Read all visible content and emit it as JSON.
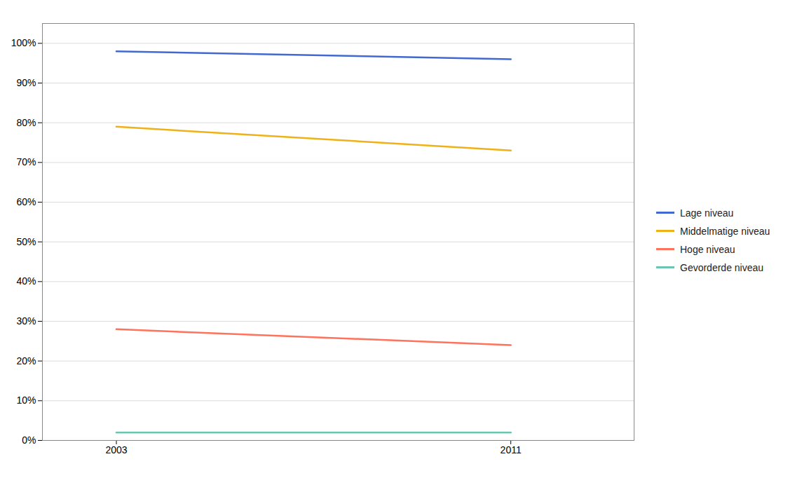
{
  "chart_data": {
    "type": "line",
    "x": [
      2003,
      2011
    ],
    "series": [
      {
        "name": "Lage niveau",
        "values": [
          0.98,
          0.96
        ]
      },
      {
        "name": "Middelmatige niveau",
        "values": [
          0.79,
          0.73
        ]
      },
      {
        "name": "Hoge niveau",
        "values": [
          0.28,
          0.24
        ]
      },
      {
        "name": "Gevorderde niveau",
        "values": [
          0.02,
          0.02
        ]
      }
    ],
    "xlim": [
      2001.5,
      2013.5
    ],
    "xticks": [
      2003,
      2011
    ],
    "ylim": [
      0,
      1.05
    ],
    "yticks": [
      {
        "value": 0.0,
        "label": "0%"
      },
      {
        "value": 0.1,
        "label": "10%"
      },
      {
        "value": 0.2,
        "label": "20%"
      },
      {
        "value": 0.3,
        "label": "30%"
      },
      {
        "value": 0.4,
        "label": "40%"
      },
      {
        "value": 0.5,
        "label": "50%"
      },
      {
        "value": 0.6,
        "label": "60%"
      },
      {
        "value": 0.7,
        "label": "70%"
      },
      {
        "value": 0.8,
        "label": "80%"
      },
      {
        "value": 0.9,
        "label": "90%"
      },
      {
        "value": 1.0,
        "label": "100%"
      }
    ],
    "grid": "y",
    "legend": "right"
  }
}
